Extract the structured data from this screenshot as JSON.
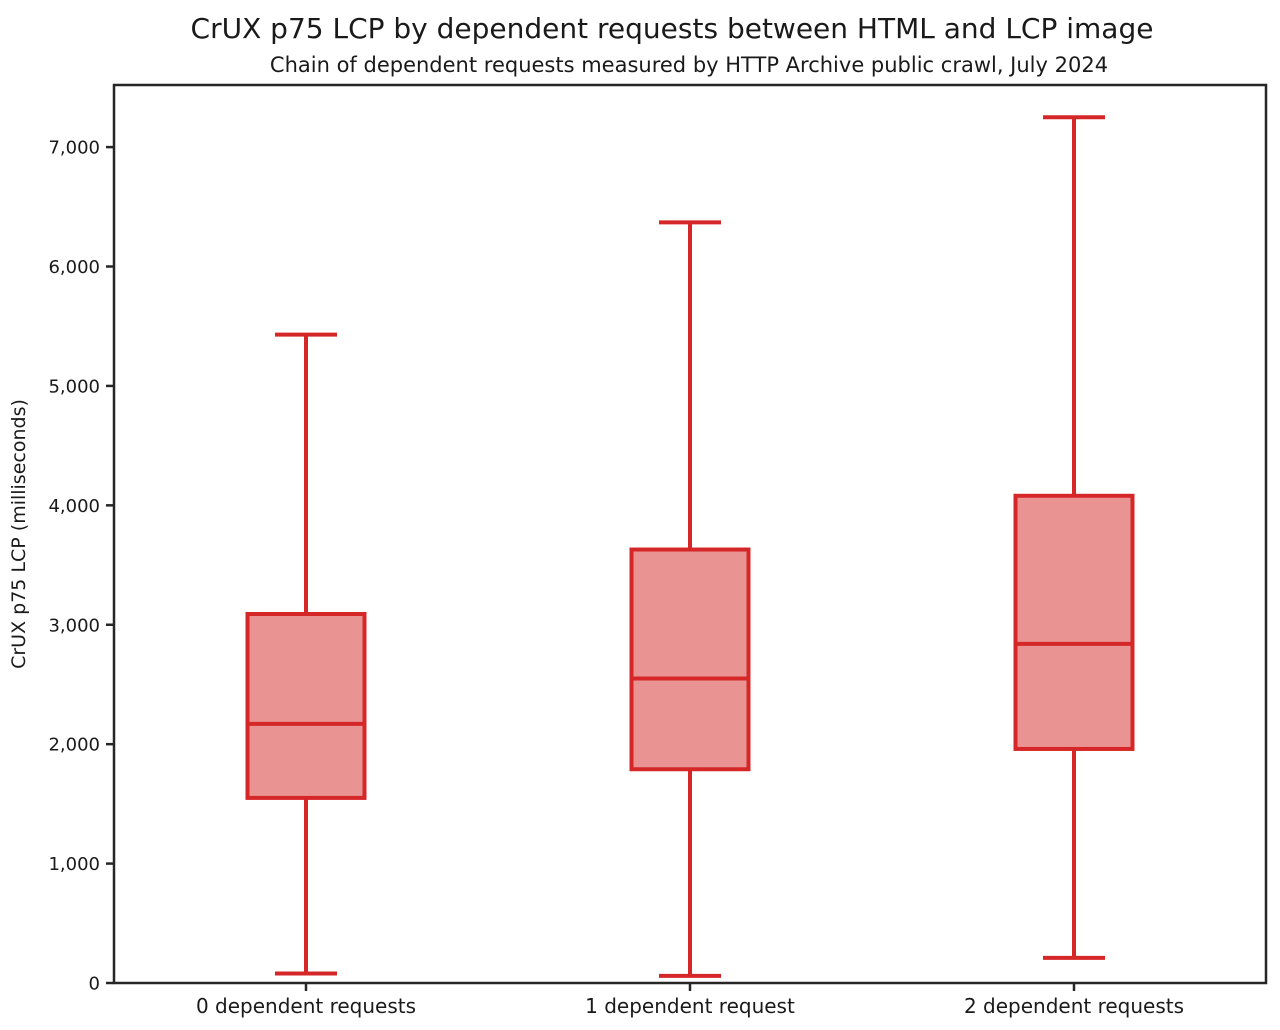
{
  "chart_data": {
    "type": "boxplot",
    "title": "CrUX p75 LCP by dependent requests between HTML and LCP image",
    "subtitle": "Chain of dependent requests measured by HTTP Archive public crawl, July 2024",
    "ylabel": "CrUX p75 LCP (milliseconds)",
    "xlabel": "",
    "categories": [
      "0 dependent requests",
      "1 dependent request",
      "2 dependent requests"
    ],
    "series": [
      {
        "category": "0 dependent requests",
        "whisker_low": 80,
        "q1": 1550,
        "median": 2170,
        "q3": 3090,
        "whisker_high": 5430
      },
      {
        "category": "1 dependent request",
        "whisker_low": 60,
        "q1": 1790,
        "median": 2550,
        "q3": 3630,
        "whisker_high": 6370
      },
      {
        "category": "2 dependent requests",
        "whisker_low": 210,
        "q1": 1960,
        "median": 2840,
        "q3": 4080,
        "whisker_high": 7250
      }
    ],
    "ylim": [
      0,
      7520
    ],
    "yticks": [
      0,
      1000,
      2000,
      3000,
      4000,
      5000,
      6000,
      7000
    ],
    "ytick_labels": [
      "0",
      "1,000",
      "2,000",
      "3,000",
      "4,000",
      "5,000",
      "6,000",
      "7,000"
    ],
    "grid": false,
    "legend": "none",
    "colors": {
      "box_line": "#d62728",
      "box_fill": "#ea9393",
      "axis": "#262626",
      "text": "#1a1a1a",
      "background": "#ffffff"
    }
  }
}
